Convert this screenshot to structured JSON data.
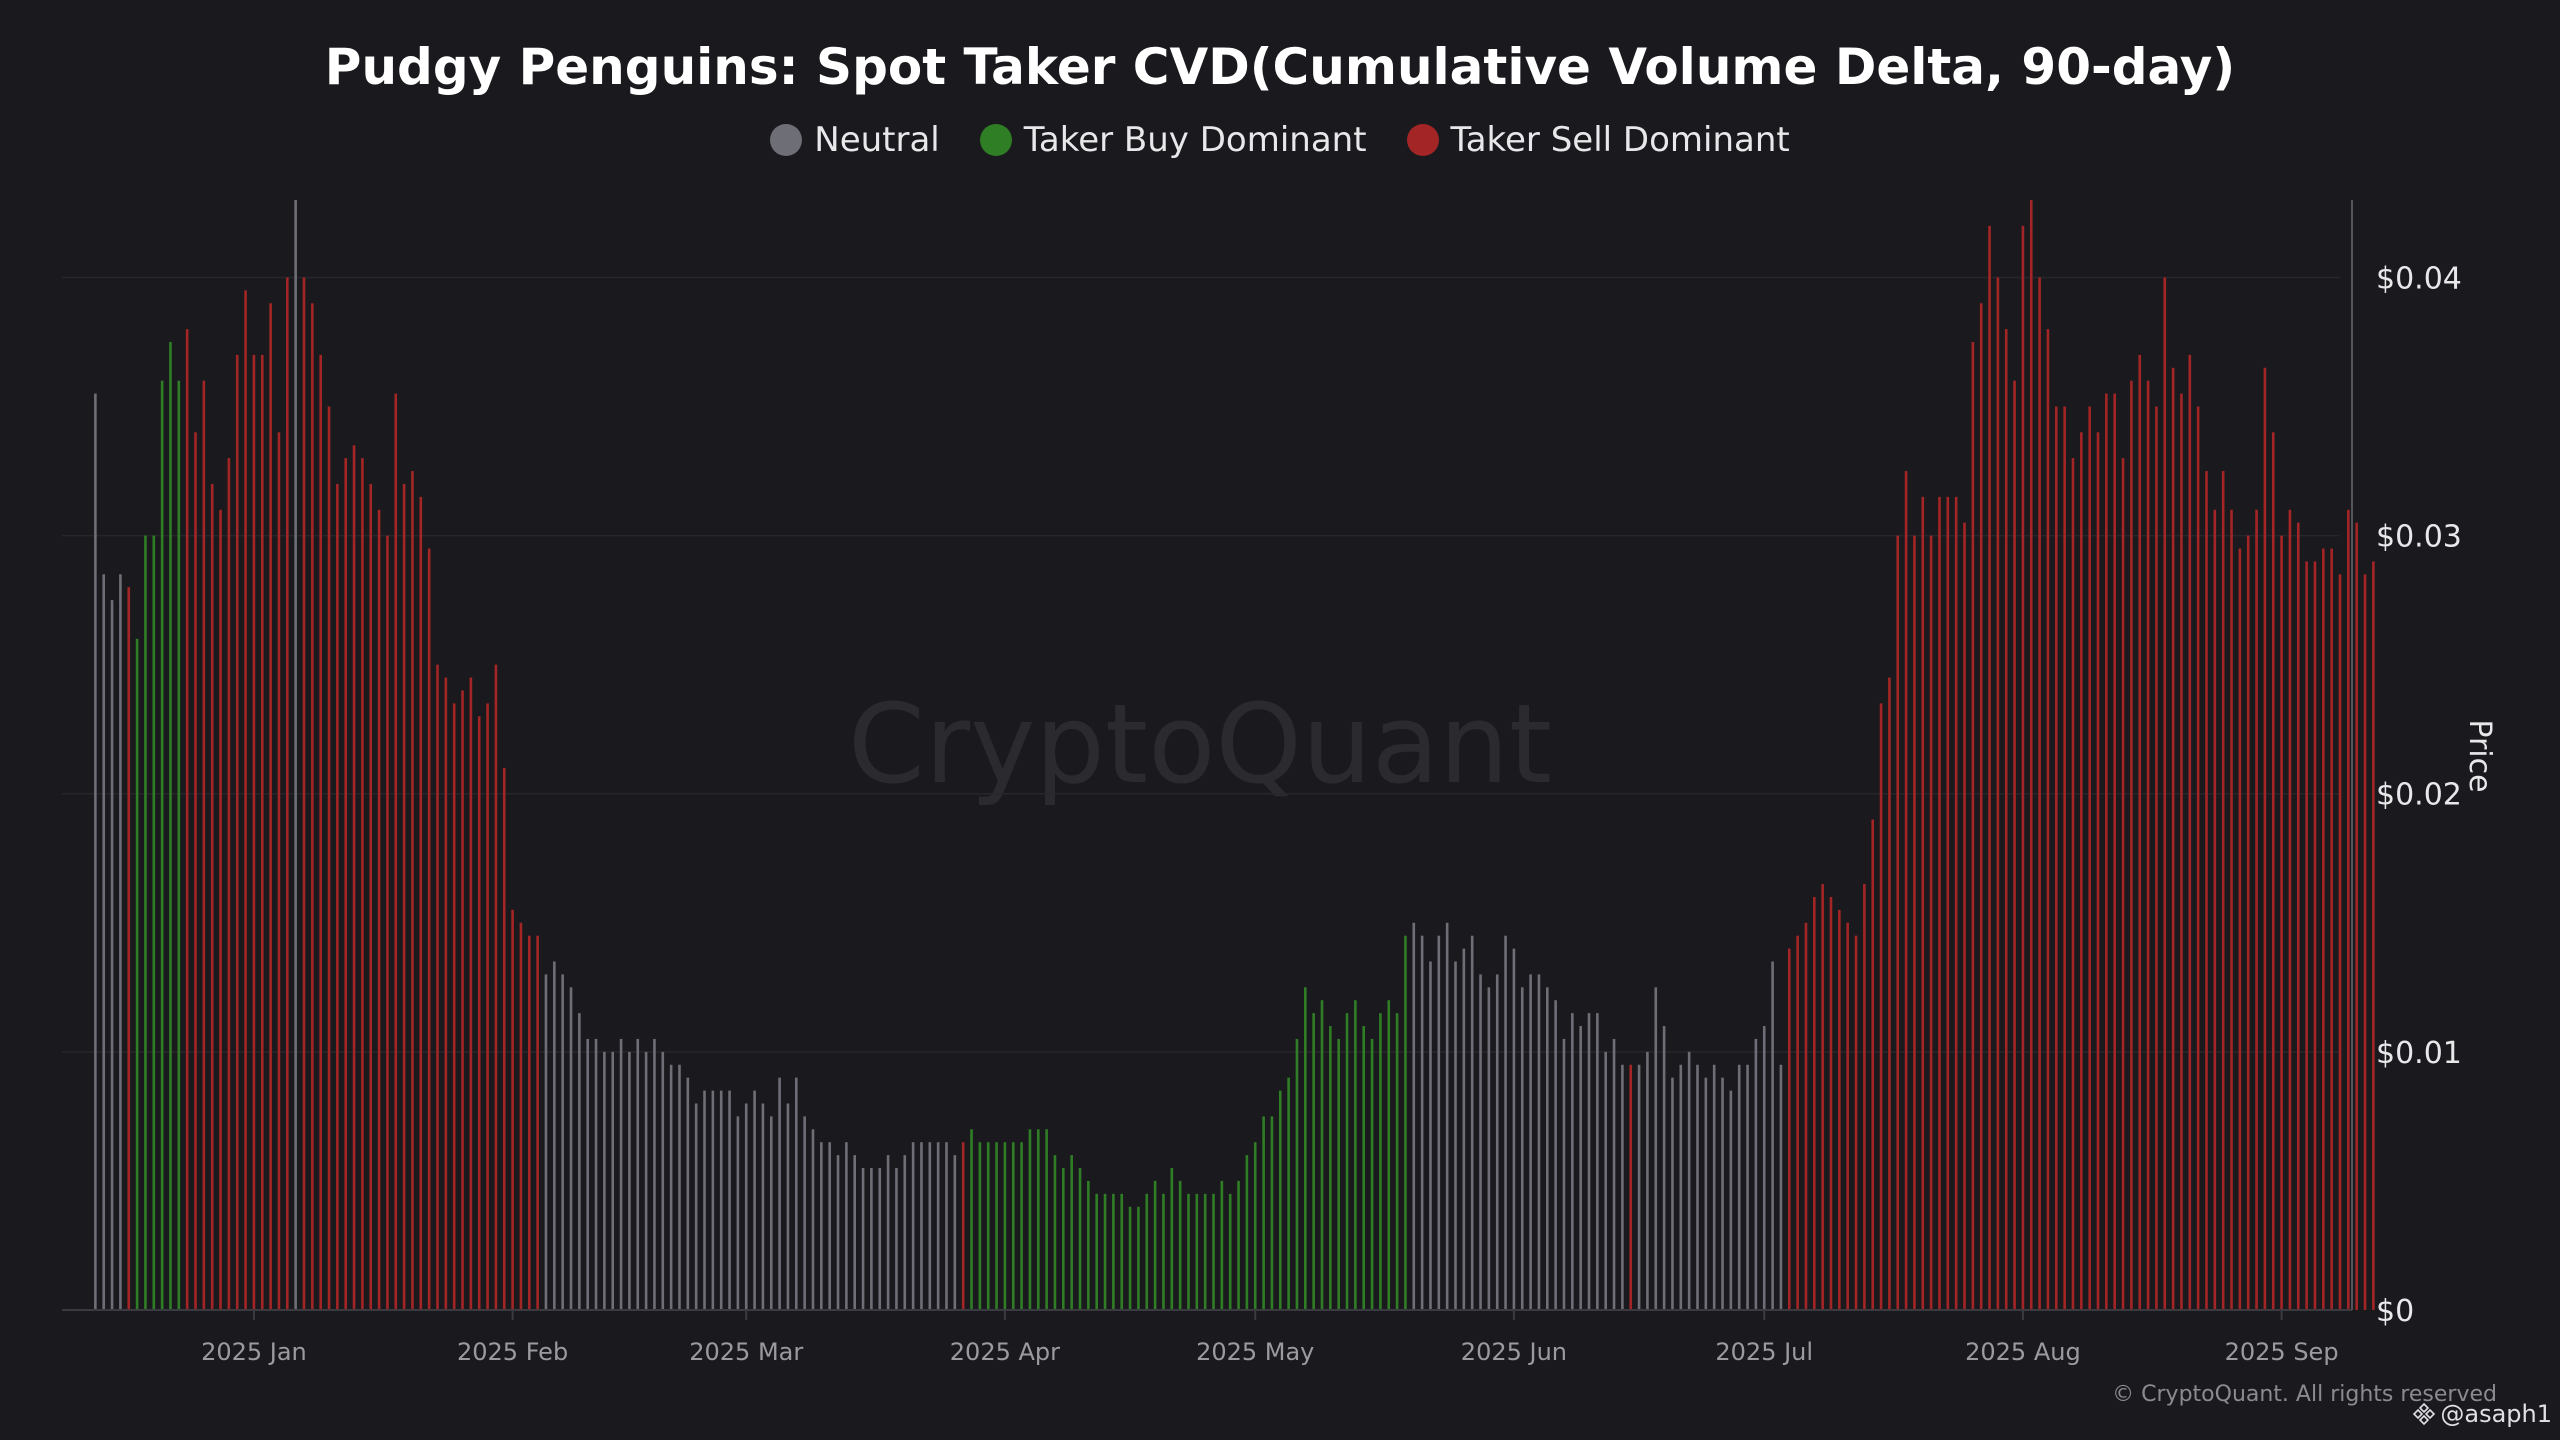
{
  "chart_data": {
    "type": "bar",
    "title": "Pudgy Penguins: Spot Taker CVD(Cumulative Volume Delta, 90-day)",
    "ylabel": "Price",
    "ylim": [
      0,
      0.043
    ],
    "y_ticks": [
      "$0",
      "$0.01",
      "$0.02",
      "$0.03",
      "$0.04"
    ],
    "x_ticks": [
      "2025 Jan",
      "2025 Feb",
      "2025 Mar",
      "2025 Apr",
      "2025 May",
      "2025 Jun",
      "2025 Jul",
      "2025 Aug",
      "2025 Sep"
    ],
    "grid": true,
    "legend_position": "top-center",
    "legend": [
      {
        "label": "Neutral",
        "color": "#6e6e76"
      },
      {
        "label": "Taker Buy Dominant",
        "color": "#2f7d25"
      },
      {
        "label": "Taker Sell Dominant",
        "color": "#a32525"
      }
    ],
    "x_range": [
      "2024-12-09",
      "2025-09-08"
    ],
    "segments": [
      {
        "start": "2024-12-13",
        "category": "Neutral",
        "values": [
          0.0355,
          0.0285,
          0.0275,
          0.0285
        ]
      },
      {
        "start": "2024-12-17",
        "category": "Taker Sell Dominant",
        "values": [
          0.028
        ]
      },
      {
        "start": "2024-12-18",
        "category": "Taker Buy Dominant",
        "values": [
          0.026,
          0.03,
          0.03,
          0.036,
          0.0375,
          0.036
        ]
      },
      {
        "start": "2024-12-24",
        "category": "Taker Sell Dominant",
        "values": [
          0.038,
          0.034,
          0.036,
          0.032,
          0.031,
          0.033,
          0.037,
          0.0395,
          0.037,
          0.037,
          0.039,
          0.034,
          0.04
        ]
      },
      {
        "start": "2025-01-06",
        "category": "Neutral",
        "values": [
          0.043
        ]
      },
      {
        "start": "2025-01-07",
        "category": "Taker Sell Dominant",
        "values": [
          0.04,
          0.039,
          0.037,
          0.035,
          0.032,
          0.033,
          0.0335,
          0.033,
          0.032,
          0.031,
          0.03,
          0.0355,
          0.032,
          0.0325,
          0.0315,
          0.0295,
          0.025,
          0.0245,
          0.0235,
          0.024,
          0.0245,
          0.023,
          0.0235,
          0.025,
          0.021,
          0.0155,
          0.015,
          0.0145,
          0.0145
        ]
      },
      {
        "start": "2025-02-05",
        "category": "Neutral",
        "values": [
          0.013,
          0.0135,
          0.013,
          0.0125,
          0.0115,
          0.0105,
          0.0105,
          0.01,
          0.01,
          0.0105,
          0.01,
          0.0105,
          0.01,
          0.0105,
          0.01,
          0.0095,
          0.0095,
          0.009,
          0.008,
          0.0085,
          0.0085,
          0.0085,
          0.0085,
          0.0075,
          0.008,
          0.0085,
          0.008,
          0.0075,
          0.009,
          0.008,
          0.009,
          0.0075,
          0.007,
          0.0065,
          0.0065,
          0.006,
          0.0065,
          0.006,
          0.0055,
          0.0055,
          0.0055,
          0.006,
          0.0055,
          0.006,
          0.0065,
          0.0065,
          0.0065,
          0.0065,
          0.0065,
          0.006
        ]
      },
      {
        "start": "2025-03-27",
        "category": "Taker Sell Dominant",
        "values": [
          0.0065
        ]
      },
      {
        "start": "2025-03-28",
        "category": "Taker Buy Dominant",
        "values": [
          0.007,
          0.0065,
          0.0065,
          0.0065,
          0.0065,
          0.0065,
          0.0065,
          0.007,
          0.007,
          0.007,
          0.006,
          0.0055,
          0.006,
          0.0055,
          0.005,
          0.0045,
          0.0045,
          0.0045,
          0.0045,
          0.004,
          0.004,
          0.0045,
          0.005,
          0.0045,
          0.0055,
          0.005,
          0.0045,
          0.0045,
          0.0045,
          0.0045,
          0.005,
          0.0045,
          0.005,
          0.006,
          0.0065,
          0.0075,
          0.0075,
          0.0085,
          0.009,
          0.0105,
          0.0125,
          0.0115,
          0.012,
          0.011,
          0.0105,
          0.0115,
          0.012,
          0.011,
          0.0105,
          0.0115,
          0.012,
          0.0115,
          0.0145
        ]
      },
      {
        "start": "2025-05-20",
        "category": "Neutral",
        "values": [
          0.015,
          0.0145,
          0.0135,
          0.0145,
          0.015,
          0.0135,
          0.014,
          0.0145,
          0.013,
          0.0125,
          0.013,
          0.0145,
          0.014,
          0.0125,
          0.013,
          0.013,
          0.0125,
          0.012,
          0.0105,
          0.0115,
          0.011,
          0.0115,
          0.0115,
          0.01,
          0.0105,
          0.0095
        ]
      },
      {
        "start": "2025-06-15",
        "category": "Taker Sell Dominant",
        "values": [
          0.0095
        ]
      },
      {
        "start": "2025-06-16",
        "category": "Neutral",
        "values": [
          0.0095,
          0.01,
          0.0125,
          0.011,
          0.009,
          0.0095,
          0.01,
          0.0095,
          0.009,
          0.0095,
          0.009,
          0.0085,
          0.0095,
          0.0095,
          0.0105,
          0.011,
          0.0135,
          0.0095
        ]
      },
      {
        "start": "2025-07-04",
        "category": "Taker Sell Dominant",
        "values": [
          0.014,
          0.0145,
          0.015,
          0.016,
          0.0165,
          0.016,
          0.0155,
          0.015,
          0.0145,
          0.0165,
          0.019,
          0.0235,
          0.0245,
          0.03,
          0.0325,
          0.03,
          0.0315,
          0.03,
          0.0315,
          0.0315,
          0.0315,
          0.0305,
          0.0375,
          0.039,
          0.042,
          0.04,
          0.038,
          0.036,
          0.042,
          0.043,
          0.04,
          0.038,
          0.035,
          0.035,
          0.033,
          0.034,
          0.035,
          0.034,
          0.0355,
          0.0355,
          0.033,
          0.036,
          0.037,
          0.036,
          0.035,
          0.04,
          0.0365,
          0.0355,
          0.037,
          0.035,
          0.0325,
          0.031,
          0.0325,
          0.031,
          0.0295,
          0.03,
          0.031,
          0.0365,
          0.034,
          0.03,
          0.031,
          0.0305,
          0.029,
          0.029,
          0.0295,
          0.0295,
          0.0285,
          0.031,
          0.0305,
          0.0285,
          0.029
        ]
      }
    ]
  },
  "copyright": "© CryptoQuant. All rights reserved",
  "user_tag": "@asaph1",
  "watermark": "CryptoQuant",
  "icons": {
    "user_tag_icon": "binance-diamond-icon"
  }
}
